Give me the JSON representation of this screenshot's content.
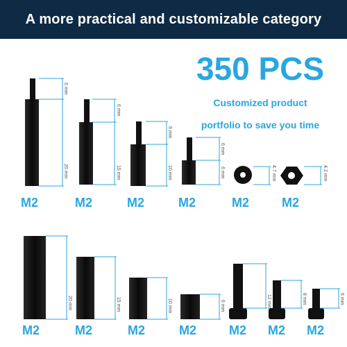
{
  "banner": {
    "text": "A more practical and customizable category",
    "color": "#0f2a44"
  },
  "headline": {
    "text": "350 PCS",
    "color": "#2aa6df"
  },
  "subtitle": {
    "line1": "Customized product",
    "line2": "portfolio to save you time"
  },
  "row1": {
    "labels": [
      "M2",
      "M2",
      "M2",
      "M2",
      "M2",
      "M2"
    ],
    "dims": [
      "6 mm",
      "20 mm",
      "6 mm",
      "15 mm",
      "6 mm",
      "10 mm",
      "6 mm",
      "6 mm",
      "4.7 mm",
      "4.2 mm"
    ]
  },
  "row2": {
    "labels": [
      "M2",
      "M2",
      "M2",
      "M2",
      "M2",
      "M2",
      "M2"
    ],
    "dims": [
      "20 mm",
      "15 mm",
      "10 mm",
      "6 mm",
      "12 mm",
      "8 mm",
      "6 mm"
    ]
  }
}
